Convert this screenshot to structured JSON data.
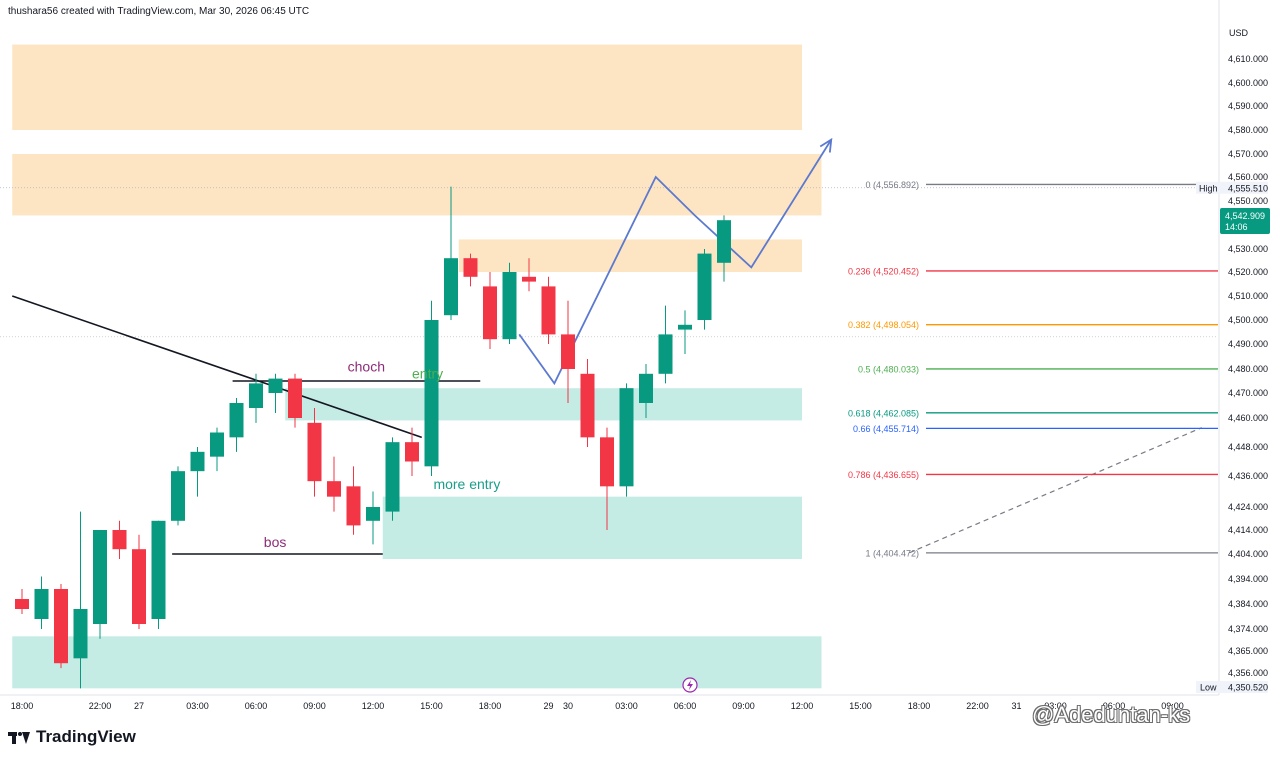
{
  "header": {
    "text": "thushara56 created with TradingView.com, Mar 30, 2026 06:45 UTC"
  },
  "footer": {
    "logo_text": "TradingView",
    "watermark": "@Adeduntan-ks"
  },
  "colors": {
    "bull": "#089981",
    "bear": "#f23645",
    "supply_zone": "#fde2bd",
    "demand_zone": "#bfe9e2",
    "projection": "#5b79cf",
    "fib_0": "#787b86",
    "fib_0236": "#f23645",
    "fib_0382": "#ff9800",
    "fib_05": "#4caf50",
    "fib_0618": "#089981",
    "fib_066": "#2962ff",
    "fib_0786": "#f23645",
    "fib_1": "#787b86"
  },
  "chart_data": {
    "type": "candlestick",
    "currency_label": "USD",
    "y_ticks": [
      4356,
      4365,
      4374,
      4384,
      4394,
      4404,
      4414,
      4424,
      4436,
      4448,
      4460,
      4470,
      4480,
      4490,
      4500,
      4510,
      4520,
      4530,
      4540,
      4550,
      4560,
      4570,
      4580,
      4590,
      4600,
      4610
    ],
    "y_tick_labels": [
      "4,356.000",
      "4,365.000",
      "4,374.000",
      "4,384.000",
      "4,394.000",
      "4,404.000",
      "4,414.000",
      "4,424.000",
      "4,436.000",
      "4,448.000",
      "4,460.000",
      "4,470.000",
      "4,480.000",
      "4,490.000",
      "4,500.000",
      "4,510.000",
      "4,520.000",
      "4,530.000",
      "4,540.000",
      "4,550.000",
      "4,560.000",
      "4,570.000",
      "4,580.000",
      "4,590.000",
      "4,600.000",
      "4,610.000"
    ],
    "x_ticks": [
      {
        "label": "18:00",
        "t": 0
      },
      {
        "label": "22:00",
        "t": 4
      },
      {
        "label": "27",
        "t": 6
      },
      {
        "label": "03:00",
        "t": 9
      },
      {
        "label": "06:00",
        "t": 12
      },
      {
        "label": "09:00",
        "t": 15
      },
      {
        "label": "12:00",
        "t": 18
      },
      {
        "label": "15:00",
        "t": 21
      },
      {
        "label": "18:00",
        "t": 24
      },
      {
        "label": "29",
        "t": 27
      },
      {
        "label": "30",
        "t": 28
      },
      {
        "label": "03:00",
        "t": 31
      },
      {
        "label": "06:00",
        "t": 34
      },
      {
        "label": "09:00",
        "t": 37
      },
      {
        "label": "12:00",
        "t": 40
      },
      {
        "label": "15:00",
        "t": 43
      },
      {
        "label": "18:00",
        "t": 46
      },
      {
        "label": "22:00",
        "t": 49
      },
      {
        "label": "31",
        "t": 51
      },
      {
        "label": "03:00",
        "t": 53
      },
      {
        "label": "06:00",
        "t": 56
      },
      {
        "label": "09:00",
        "t": 59
      }
    ],
    "candles": [
      {
        "t": 0,
        "o": 4386,
        "h": 4390,
        "l": 4380,
        "c": 4382
      },
      {
        "t": 1,
        "o": 4378,
        "h": 4395,
        "l": 4374,
        "c": 4390
      },
      {
        "t": 2,
        "o": 4390,
        "h": 4392,
        "l": 4358,
        "c": 4360
      },
      {
        "t": 3,
        "o": 4362,
        "h": 4422,
        "l": 4350,
        "c": 4382
      },
      {
        "t": 4,
        "o": 4376,
        "h": 4414,
        "l": 4370,
        "c": 4414
      },
      {
        "t": 5,
        "o": 4414,
        "h": 4418,
        "l": 4402,
        "c": 4406
      },
      {
        "t": 6,
        "o": 4406,
        "h": 4412,
        "l": 4374,
        "c": 4376
      },
      {
        "t": 7,
        "o": 4378,
        "h": 4418,
        "l": 4374,
        "c": 4418
      },
      {
        "t": 8,
        "o": 4418,
        "h": 4440,
        "l": 4416,
        "c": 4438
      },
      {
        "t": 9,
        "o": 4438,
        "h": 4448,
        "l": 4428,
        "c": 4446
      },
      {
        "t": 10,
        "o": 4444,
        "h": 4456,
        "l": 4438,
        "c": 4454
      },
      {
        "t": 11,
        "o": 4452,
        "h": 4468,
        "l": 4446,
        "c": 4466
      },
      {
        "t": 12,
        "o": 4464,
        "h": 4478,
        "l": 4458,
        "c": 4474
      },
      {
        "t": 13,
        "o": 4470,
        "h": 4478,
        "l": 4462,
        "c": 4476
      },
      {
        "t": 14,
        "o": 4476,
        "h": 4478,
        "l": 4456,
        "c": 4460
      },
      {
        "t": 15,
        "o": 4458,
        "h": 4464,
        "l": 4428,
        "c": 4434
      },
      {
        "t": 16,
        "o": 4434,
        "h": 4444,
        "l": 4422,
        "c": 4428
      },
      {
        "t": 17,
        "o": 4432,
        "h": 4440,
        "l": 4412,
        "c": 4416
      },
      {
        "t": 18,
        "o": 4418,
        "h": 4430,
        "l": 4408,
        "c": 4424
      },
      {
        "t": 19,
        "o": 4422,
        "h": 4452,
        "l": 4418,
        "c": 4450
      },
      {
        "t": 20,
        "o": 4450,
        "h": 4456,
        "l": 4436,
        "c": 4442
      },
      {
        "t": 21,
        "o": 4440,
        "h": 4508,
        "l": 4436,
        "c": 4500
      },
      {
        "t": 22,
        "o": 4502,
        "h": 4556,
        "l": 4500,
        "c": 4526
      },
      {
        "t": 23,
        "o": 4526,
        "h": 4528,
        "l": 4514,
        "c": 4518
      },
      {
        "t": 24,
        "o": 4514,
        "h": 4520,
        "l": 4488,
        "c": 4492
      },
      {
        "t": 25,
        "o": 4492,
        "h": 4524,
        "l": 4490,
        "c": 4520
      },
      {
        "t": 26,
        "o": 4518,
        "h": 4526,
        "l": 4512,
        "c": 4516
      },
      {
        "t": 27,
        "o": 4514,
        "h": 4518,
        "l": 4490,
        "c": 4494
      },
      {
        "t": 28,
        "o": 4494,
        "h": 4508,
        "l": 4466,
        "c": 4480
      },
      {
        "t": 29,
        "o": 4478,
        "h": 4484,
        "l": 4448,
        "c": 4452
      },
      {
        "t": 30,
        "o": 4452,
        "h": 4456,
        "l": 4414,
        "c": 4432
      },
      {
        "t": 31,
        "o": 4432,
        "h": 4474,
        "l": 4428,
        "c": 4472
      },
      {
        "t": 32,
        "o": 4466,
        "h": 4482,
        "l": 4460,
        "c": 4478
      },
      {
        "t": 33,
        "o": 4478,
        "h": 4506,
        "l": 4474,
        "c": 4494
      },
      {
        "t": 34,
        "o": 4496,
        "h": 4504,
        "l": 4486,
        "c": 4498
      },
      {
        "t": 35,
        "o": 4500,
        "h": 4530,
        "l": 4496,
        "c": 4528
      },
      {
        "t": 36,
        "o": 4524,
        "h": 4544,
        "l": 4516,
        "c": 4542
      }
    ],
    "zones": [
      {
        "type": "supply",
        "t1": -0.5,
        "t2": 40,
        "y1": 4580,
        "y2": 4616
      },
      {
        "type": "supply",
        "t1": -0.5,
        "t2": 41,
        "y1": 4544,
        "y2": 4570
      },
      {
        "type": "supply",
        "t1": 22.4,
        "t2": 40,
        "y1": 4520,
        "y2": 4534
      },
      {
        "type": "demand",
        "t1": 13.5,
        "t2": 40,
        "y1": 4459,
        "y2": 4472
      },
      {
        "type": "demand",
        "t1": 18.5,
        "t2": 40,
        "y1": 4402,
        "y2": 4428
      },
      {
        "type": "demand",
        "t1": -0.5,
        "t2": 41,
        "y1": 4350,
        "y2": 4371
      }
    ],
    "trendline": {
      "t1": -0.5,
      "y1": 4510,
      "t2": 20.5,
      "y2": 4452
    },
    "choch_line": {
      "t1": 10.8,
      "t2": 23.5,
      "y": 4475
    },
    "bos_line": {
      "t1": 7.7,
      "t2": 18.5,
      "y": 4404
    },
    "projection_path": [
      {
        "t": 25.5,
        "y": 4494
      },
      {
        "t": 27.3,
        "y": 4474
      },
      {
        "t": 32.5,
        "y": 4560
      },
      {
        "t": 34.5,
        "y": 4544
      },
      {
        "t": 37.4,
        "y": 4522
      },
      {
        "t": 41.5,
        "y": 4576
      }
    ],
    "fib_dashed": {
      "t1": 45.5,
      "y1": 4404.472,
      "t2": 60.5,
      "y2": 4456
    },
    "fib_levels": [
      {
        "ratio": "0",
        "value": 4556.892,
        "label": "0 (4,556.892)",
        "color_key": "fib_0"
      },
      {
        "ratio": "0.236",
        "value": 4520.452,
        "label": "0.236 (4,520.452)",
        "color_key": "fib_0236"
      },
      {
        "ratio": "0.382",
        "value": 4498.054,
        "label": "0.382 (4,498.054)",
        "color_key": "fib_0382"
      },
      {
        "ratio": "0.5",
        "value": 4480.033,
        "label": "0.5 (4,480.033)",
        "color_key": "fib_05"
      },
      {
        "ratio": "0.618",
        "value": 4462.085,
        "label": "0.618 (4,462.085)",
        "color_key": "fib_0618"
      },
      {
        "ratio": "0.66",
        "value": 4455.714,
        "label": "0.66 (4,455.714)",
        "color_key": "fib_066"
      },
      {
        "ratio": "0.786",
        "value": 4436.655,
        "label": "0.786 (4,436.655)",
        "color_key": "fib_0786"
      },
      {
        "ratio": "1",
        "value": 4404.472,
        "label": "1 (4,404.472)",
        "color_key": "fib_1"
      }
    ],
    "annotations": [
      {
        "text": "choch",
        "t": 16.7,
        "y": 4479,
        "color": "#8e2c7a"
      },
      {
        "text": "entry",
        "t": 20,
        "y": 4476,
        "color": "#4caf50"
      },
      {
        "text": "more  entry",
        "t": 21.1,
        "y": 4431,
        "color": "#1b9e8a"
      },
      {
        "text": "bos",
        "t": 12.4,
        "y": 4407,
        "color": "#8e2c7a"
      }
    ],
    "high": {
      "label": "High",
      "value": 4555.51,
      "value_label": "4,555.510"
    },
    "low": {
      "label": "Low",
      "value": 4350.52,
      "value_label": "4,350.520"
    },
    "current": {
      "value": 4542.909,
      "value_label": "4,542.909",
      "countdown": "14:06"
    }
  }
}
